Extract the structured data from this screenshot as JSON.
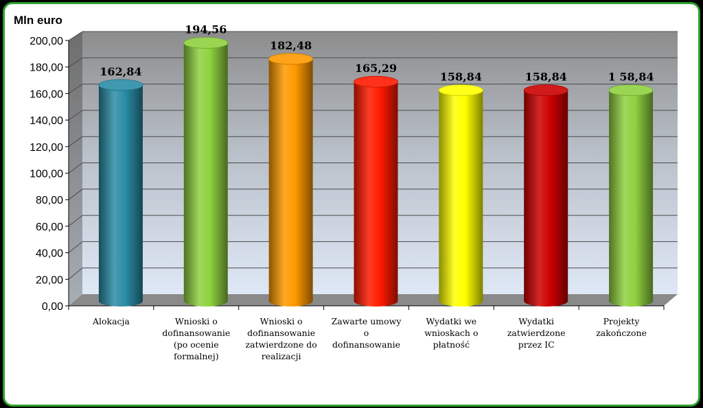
{
  "chart_data": {
    "type": "bar",
    "unit_label": "Mln euro",
    "categories": [
      "Alokacja",
      "Wnioski o\ndofinansowanie\n(po ocenie\nformalnej)",
      "Wnioski o\ndofinansowanie\nzatwierdzone do\nrealizacji",
      "Zawarte umowy\no\ndofinansowanie",
      "Wydatki we\nwnioskach o\npłatność",
      "Wydatki\nzatwierdzone\nprzez IC",
      "Projekty\nzakończone"
    ],
    "values": [
      162.84,
      194.56,
      182.48,
      165.29,
      158.84,
      158.84,
      158.84
    ],
    "data_labels": [
      "162,84",
      "194,56",
      "182,48",
      "165,29",
      "158,84",
      "158,84",
      "1 58,84"
    ],
    "bar_colors": [
      "#2a8ca6",
      "#8fd13f",
      "#ff9900",
      "#ff1a00",
      "#ffff00",
      "#cc0000",
      "#8fd13f"
    ],
    "ylim": [
      0,
      200
    ],
    "yticks": [
      "0,00",
      "20,00",
      "40,00",
      "60,00",
      "80,00",
      "100,00",
      "120,00",
      "140,00",
      "160,00",
      "180,00",
      "200,00"
    ],
    "grid": true,
    "style": "3d-cylinder"
  }
}
